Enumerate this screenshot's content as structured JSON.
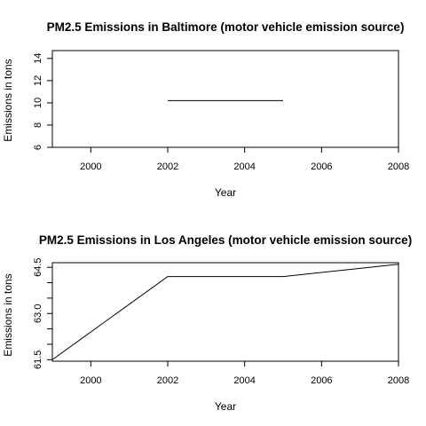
{
  "chart_data": [
    {
      "type": "line",
      "title": "PM2.5 Emissions in Baltimore (motor vehicle emission source)",
      "xlabel": "Year",
      "ylabel": "Emissions in tons",
      "xlim": [
        1999,
        2008
      ],
      "ylim": [
        6,
        14.7
      ],
      "xticks": [
        "2000",
        "2002",
        "2004",
        "2006",
        "2008"
      ],
      "yticks": [
        "6",
        "8",
        "10",
        "12",
        "14"
      ],
      "x": [
        2002,
        2005
      ],
      "values": [
        10.2,
        10.2
      ],
      "grid": false
    },
    {
      "type": "line",
      "title": "PM2.5 Emissions in Los Angeles (motor vehicle emission source)",
      "xlabel": "Year",
      "ylabel": "Emissions in tons",
      "xlim": [
        1999,
        2008
      ],
      "ylim": [
        61.45,
        64.65
      ],
      "xticks": [
        "2000",
        "2002",
        "2004",
        "2006",
        "2008"
      ],
      "yticks": [
        "61.5",
        "63.0",
        "64.5"
      ],
      "yminor": [
        62.0,
        62.5,
        63.5,
        64.0
      ],
      "x": [
        1999,
        2002,
        2005,
        2008
      ],
      "values": [
        61.5,
        64.2,
        64.2,
        64.6
      ],
      "grid": false
    }
  ]
}
